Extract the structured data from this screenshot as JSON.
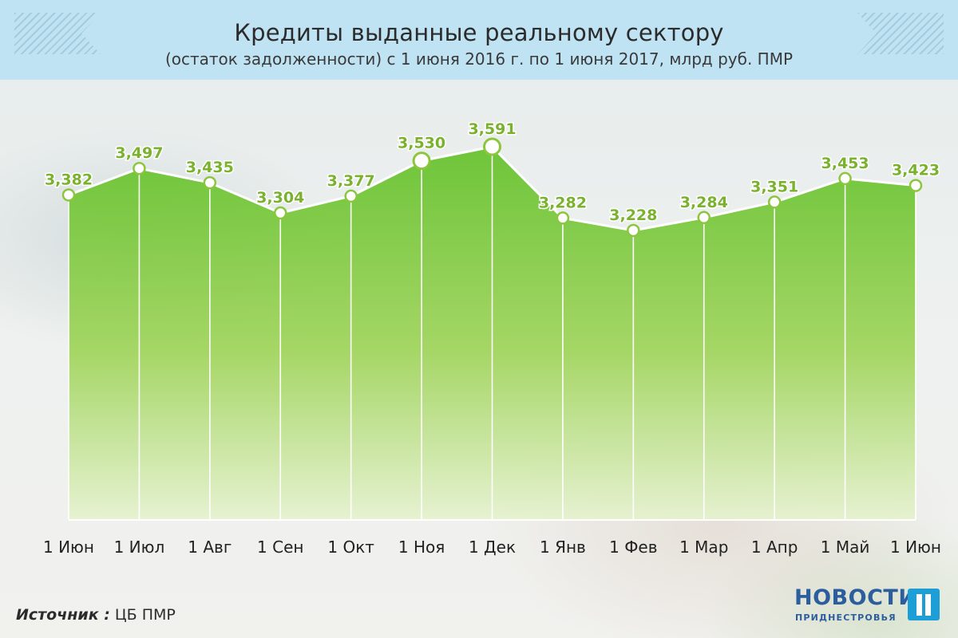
{
  "header": {
    "title": "Кредиты выданные реальному сектору",
    "subtitle": "(остаток задолженности) с 1 июня 2016 г. по 1 июня 2017, млрд руб. ПМР"
  },
  "chart_data": {
    "type": "area",
    "title": "Кредиты выданные реальному сектору",
    "subtitle": "(остаток задолженности) с 1 июня 2016 г. по 1 июня 2017, млрд руб. ПМР",
    "categories": [
      "1 Июн",
      "1 Июл",
      "1 Авг",
      "1 Сен",
      "1 Окт",
      "1 Ноя",
      "1 Дек",
      "1 Янв",
      "1 Фев",
      "1 Мар",
      "1 Апр",
      "1 Май",
      "1 Июн"
    ],
    "values": [
      3.382,
      3.497,
      3.435,
      3.304,
      3.377,
      3.53,
      3.591,
      3.282,
      3.228,
      3.284,
      3.351,
      3.453,
      3.423
    ],
    "labels": [
      "3,382",
      "3,497",
      "3,435",
      "3,304",
      "3,377",
      "3,530",
      "3,591",
      "3,282",
      "3,228",
      "3,284",
      "3,351",
      "3,453",
      "3,423"
    ],
    "highlighted": [
      "3,530",
      "3,591"
    ],
    "colors": {
      "fill_top": "#63c12a",
      "fill_bottom": "#e6f2cf",
      "line": "#ffffff",
      "marker_stroke": "#8cc63f",
      "label": "#7ab22e"
    },
    "grid": false
  },
  "footer": {
    "source_label": "Источник :",
    "source_value": "ЦБ ПМР"
  },
  "logo": {
    "word": "НОВОСТИ",
    "sub": "ПРИДНЕСТРОВЬЯ"
  }
}
